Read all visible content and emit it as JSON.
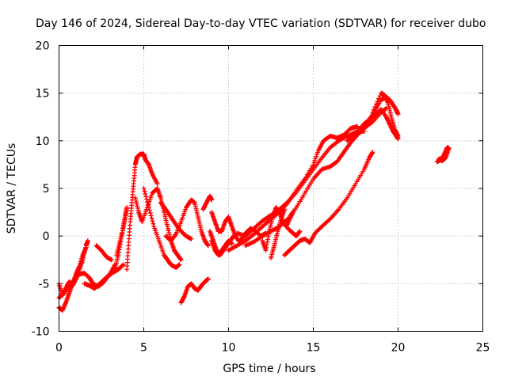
{
  "chart_data": {
    "type": "scatter",
    "title": "Day 146 of 2024, Sidereal Day-to-day VTEC variation (SDTVAR) for receiver dubo",
    "xlabel": "GPS time / hours",
    "ylabel": "SDTVAR / TECUs",
    "xlim": [
      0,
      25
    ],
    "ylim": [
      -10,
      20
    ],
    "xticks": [
      "0",
      "5",
      "10",
      "15",
      "20",
      "25"
    ],
    "yticks": [
      "-10",
      "-5",
      "0",
      "5",
      "10",
      "15",
      "20"
    ],
    "grid": true,
    "marker": "+",
    "color": "#ff0000",
    "series": [
      {
        "points": [
          [
            0.0,
            -5.0
          ],
          [
            0.2,
            -6.2
          ],
          [
            0.4,
            -5.5
          ],
          [
            0.6,
            -4.8
          ],
          [
            0.8,
            -5.2
          ],
          [
            1.0,
            -4.5
          ],
          [
            1.2,
            -3.5
          ],
          [
            1.4,
            -2.5
          ],
          [
            1.6,
            -1.0
          ],
          [
            1.7,
            -0.5
          ]
        ]
      },
      {
        "points": [
          [
            0.0,
            -7.5
          ],
          [
            0.2,
            -7.8
          ],
          [
            0.4,
            -7.0
          ],
          [
            0.6,
            -6.0
          ],
          [
            0.8,
            -5.0
          ],
          [
            1.0,
            -4.0
          ],
          [
            1.2,
            -3.2
          ],
          [
            1.4,
            -2.0
          ],
          [
            1.6,
            -1.2
          ]
        ]
      },
      {
        "points": [
          [
            0.0,
            -6.5
          ],
          [
            0.3,
            -6.0
          ],
          [
            0.6,
            -5.2
          ],
          [
            0.9,
            -4.6
          ],
          [
            1.2,
            -4.0
          ],
          [
            1.5,
            -3.9
          ],
          [
            1.8,
            -4.4
          ],
          [
            2.0,
            -5.0
          ],
          [
            2.3,
            -5.3
          ],
          [
            2.6,
            -4.9
          ],
          [
            2.9,
            -4.2
          ],
          [
            3.2,
            -3.8
          ],
          [
            3.5,
            -3.5
          ],
          [
            3.8,
            -3.0
          ]
        ]
      },
      {
        "points": [
          [
            1.5,
            -5.0
          ],
          [
            1.8,
            -5.2
          ],
          [
            2.1,
            -5.5
          ],
          [
            2.4,
            -5.0
          ],
          [
            2.7,
            -4.5
          ],
          [
            3.0,
            -4.0
          ],
          [
            3.3,
            -3.0
          ]
        ]
      },
      {
        "points": [
          [
            2.2,
            -1.0
          ],
          [
            2.5,
            -1.5
          ],
          [
            2.8,
            -2.2
          ],
          [
            3.1,
            -2.5
          ]
        ]
      },
      {
        "points": [
          [
            3.3,
            -3.5
          ],
          [
            3.5,
            -2.0
          ],
          [
            3.7,
            0.0
          ],
          [
            3.9,
            2.0
          ],
          [
            4.0,
            3.0
          ],
          [
            3.8,
            1.0
          ],
          [
            3.6,
            -0.5
          ],
          [
            3.4,
            -2.0
          ]
        ]
      },
      {
        "points": [
          [
            4.0,
            -3.5
          ],
          [
            4.1,
            -1.0
          ],
          [
            4.2,
            1.5
          ],
          [
            4.3,
            3.5
          ],
          [
            4.4,
            5.5
          ],
          [
            4.5,
            7.5
          ],
          [
            4.6,
            8.3
          ],
          [
            4.8,
            8.6
          ],
          [
            5.0,
            8.6
          ],
          [
            5.1,
            8.0
          ],
          [
            5.3,
            7.5
          ],
          [
            5.5,
            6.5
          ],
          [
            5.8,
            5.5
          ]
        ]
      },
      {
        "points": [
          [
            4.5,
            4.0
          ],
          [
            4.7,
            2.5
          ],
          [
            4.9,
            1.5
          ],
          [
            5.2,
            3.0
          ],
          [
            5.5,
            4.5
          ],
          [
            5.8,
            5.0
          ],
          [
            6.0,
            4.0
          ],
          [
            6.2,
            2.5
          ],
          [
            6.4,
            1.0
          ],
          [
            6.6,
            -0.5
          ],
          [
            6.8,
            -1.5
          ],
          [
            7.0,
            -2.0
          ],
          [
            7.2,
            -2.5
          ]
        ]
      },
      {
        "points": [
          [
            5.0,
            5.0
          ],
          [
            5.3,
            3.0
          ],
          [
            5.6,
            1.0
          ],
          [
            5.9,
            -0.5
          ],
          [
            6.2,
            -2.0
          ],
          [
            6.4,
            -2.5
          ],
          [
            6.6,
            -3.0
          ],
          [
            6.9,
            -3.3
          ],
          [
            7.1,
            -3.0
          ]
        ]
      },
      {
        "points": [
          [
            6.3,
            0.0
          ],
          [
            6.6,
            -0.5
          ],
          [
            6.9,
            0.2
          ],
          [
            7.2,
            1.5
          ],
          [
            7.5,
            3.0
          ],
          [
            7.8,
            3.8
          ],
          [
            8.0,
            3.5
          ],
          [
            8.2,
            2.0
          ],
          [
            8.4,
            0.5
          ],
          [
            8.6,
            -0.5
          ],
          [
            8.8,
            -1.0
          ]
        ]
      },
      {
        "points": [
          [
            6.0,
            3.5
          ],
          [
            6.3,
            2.8
          ],
          [
            6.6,
            2.0
          ],
          [
            6.9,
            1.2
          ],
          [
            7.2,
            0.5
          ],
          [
            7.5,
            0.0
          ],
          [
            7.8,
            -0.3
          ]
        ]
      },
      {
        "points": [
          [
            7.2,
            -7.0
          ],
          [
            7.4,
            -6.3
          ],
          [
            7.6,
            -5.3
          ],
          [
            7.8,
            -5.0
          ],
          [
            8.0,
            -5.5
          ],
          [
            8.2,
            -5.7
          ],
          [
            8.4,
            -5.2
          ],
          [
            8.6,
            -4.8
          ],
          [
            8.8,
            -4.5
          ]
        ]
      },
      {
        "points": [
          [
            8.5,
            2.8
          ],
          [
            8.7,
            3.5
          ],
          [
            8.9,
            4.2
          ],
          [
            9.0,
            3.8
          ]
        ]
      },
      {
        "points": [
          [
            9.0,
            -0.5
          ],
          [
            9.2,
            -1.5
          ],
          [
            9.4,
            -2.0
          ],
          [
            9.6,
            -1.5
          ],
          [
            9.8,
            -1.0
          ],
          [
            10.0,
            -0.5
          ],
          [
            10.2,
            -0.8
          ]
        ]
      },
      {
        "points": [
          [
            8.9,
            0.5
          ],
          [
            9.1,
            -0.5
          ],
          [
            9.3,
            -1.5
          ],
          [
            9.5,
            -2.0
          ],
          [
            9.7,
            -1.5
          ],
          [
            9.9,
            -1.0
          ],
          [
            10.1,
            -0.5
          ],
          [
            10.3,
            0.0
          ]
        ]
      },
      {
        "points": [
          [
            9.0,
            2.5
          ],
          [
            9.2,
            1.5
          ],
          [
            9.4,
            0.5
          ],
          [
            9.6,
            0.5
          ],
          [
            9.8,
            1.5
          ],
          [
            10.0,
            2.0
          ],
          [
            10.2,
            1.0
          ],
          [
            10.4,
            0.0
          ],
          [
            10.6,
            -0.5
          ],
          [
            10.8,
            -0.3
          ],
          [
            11.0,
            0.3
          ],
          [
            11.3,
            0.8
          ],
          [
            11.6,
            0.5
          ],
          [
            11.9,
            0.0
          ],
          [
            12.2,
            0.3
          ]
        ]
      },
      {
        "points": [
          [
            10.0,
            -1.5
          ],
          [
            10.5,
            -1.0
          ],
          [
            11.0,
            -0.5
          ],
          [
            11.5,
            0.2
          ],
          [
            12.0,
            1.0
          ],
          [
            12.5,
            1.8
          ],
          [
            13.0,
            2.5
          ],
          [
            13.5,
            3.5
          ],
          [
            14.0,
            4.8
          ],
          [
            14.5,
            6.0
          ],
          [
            15.0,
            7.5
          ],
          [
            15.3,
            9.0
          ],
          [
            15.6,
            10.0
          ],
          [
            16.0,
            10.5
          ],
          [
            16.4,
            10.3
          ],
          [
            16.8,
            10.6
          ],
          [
            17.2,
            11.3
          ],
          [
            17.6,
            11.5
          ]
        ]
      },
      {
        "points": [
          [
            10.5,
            0.3
          ],
          [
            11.0,
            0.0
          ],
          [
            11.5,
            0.8
          ],
          [
            12.0,
            1.6
          ],
          [
            12.5,
            2.2
          ],
          [
            13.0,
            2.8
          ],
          [
            13.5,
            3.6
          ],
          [
            14.0,
            4.6
          ],
          [
            14.5,
            5.8
          ],
          [
            15.0,
            7.0
          ],
          [
            15.5,
            8.2
          ],
          [
            16.0,
            9.3
          ],
          [
            16.5,
            10.0
          ],
          [
            17.0,
            10.5
          ],
          [
            17.5,
            10.9
          ],
          [
            18.0,
            11.0
          ]
        ]
      },
      {
        "points": [
          [
            11.0,
            -1.0
          ],
          [
            11.5,
            -0.6
          ],
          [
            12.0,
            0.0
          ],
          [
            12.5,
            0.5
          ],
          [
            13.0,
            1.0
          ],
          [
            13.5,
            1.8
          ],
          [
            14.0,
            3.0
          ],
          [
            14.5,
            4.5
          ],
          [
            15.0,
            6.0
          ],
          [
            15.5,
            7.0
          ],
          [
            16.0,
            7.3
          ],
          [
            16.4,
            7.8
          ],
          [
            16.8,
            8.8
          ],
          [
            17.2,
            9.8
          ],
          [
            17.6,
            10.6
          ],
          [
            18.0,
            11.3
          ],
          [
            18.5,
            12.0
          ],
          [
            19.0,
            13.0
          ],
          [
            19.3,
            13.4
          ]
        ]
      },
      {
        "points": [
          [
            12.0,
            -0.5
          ],
          [
            12.2,
            -1.5
          ],
          [
            12.4,
            0.5
          ],
          [
            12.6,
            2.0
          ],
          [
            12.8,
            3.0
          ],
          [
            13.0,
            2.5
          ],
          [
            13.2,
            1.5
          ],
          [
            13.4,
            1.0
          ],
          [
            13.6,
            1.8
          ],
          [
            13.8,
            2.5
          ]
        ]
      },
      {
        "points": [
          [
            12.5,
            -2.3
          ],
          [
            12.7,
            -1.0
          ],
          [
            12.9,
            0.5
          ],
          [
            13.1,
            1.8
          ],
          [
            13.3,
            2.8
          ]
        ]
      },
      {
        "points": [
          [
            13.3,
            -2.0
          ],
          [
            13.6,
            -1.5
          ],
          [
            13.9,
            -1.0
          ],
          [
            14.2,
            -0.5
          ],
          [
            14.5,
            -0.3
          ],
          [
            14.8,
            -0.7
          ],
          [
            15.1,
            0.3
          ],
          [
            15.5,
            1.0
          ],
          [
            16.0,
            1.8
          ],
          [
            16.5,
            2.8
          ],
          [
            17.0,
            4.0
          ],
          [
            17.5,
            5.5
          ],
          [
            18.0,
            7.0
          ],
          [
            18.3,
            8.2
          ],
          [
            18.5,
            8.8
          ]
        ]
      },
      {
        "points": [
          [
            13.5,
            0.8
          ],
          [
            13.8,
            0.3
          ],
          [
            14.0,
            0.0
          ],
          [
            14.2,
            0.5
          ]
        ]
      },
      {
        "points": [
          [
            17.8,
            11.0
          ],
          [
            18.2,
            12.0
          ],
          [
            18.6,
            13.0
          ],
          [
            19.0,
            14.3
          ],
          [
            19.3,
            14.6
          ],
          [
            19.5,
            14.3
          ],
          [
            19.7,
            13.8
          ],
          [
            19.9,
            13.2
          ],
          [
            20.0,
            12.8
          ]
        ]
      },
      {
        "points": [
          [
            17.0,
            10.0
          ],
          [
            17.5,
            10.8
          ],
          [
            18.0,
            11.8
          ],
          [
            18.5,
            12.5
          ],
          [
            19.0,
            13.3
          ],
          [
            19.3,
            12.5
          ],
          [
            19.5,
            11.8
          ],
          [
            19.7,
            11.0
          ],
          [
            19.9,
            10.5
          ],
          [
            20.0,
            10.2
          ]
        ]
      },
      {
        "points": [
          [
            18.5,
            13.0
          ],
          [
            19.0,
            15.0
          ],
          [
            19.2,
            14.8
          ],
          [
            19.4,
            14.0
          ],
          [
            19.6,
            12.5
          ],
          [
            19.8,
            11.2
          ],
          [
            20.0,
            10.5
          ]
        ]
      },
      {
        "points": [
          [
            22.3,
            7.8
          ],
          [
            22.5,
            8.0
          ],
          [
            22.7,
            8.5
          ],
          [
            22.9,
            9.3
          ],
          [
            23.0,
            9.2
          ],
          [
            22.8,
            8.2
          ],
          [
            22.6,
            7.9
          ],
          [
            22.4,
            8.1
          ]
        ]
      }
    ]
  }
}
